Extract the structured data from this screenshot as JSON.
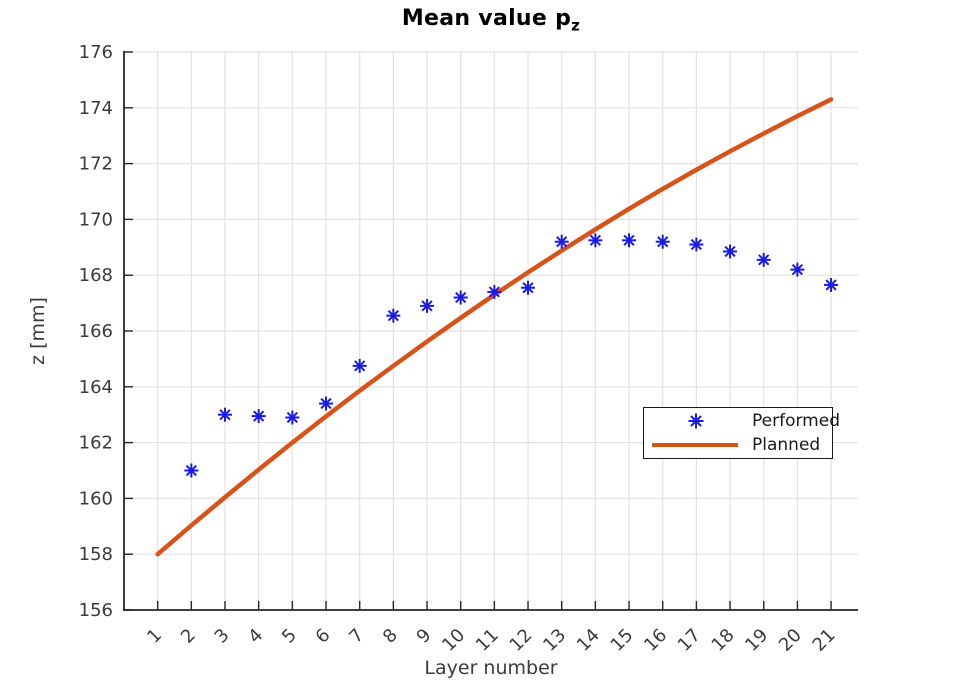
{
  "colors": {
    "performed": "#1A1AE8",
    "planned": "#D95319",
    "grid": "#E2E2E2",
    "axis": "#262626",
    "tick_text": "#3B3B3B"
  },
  "chart_data": {
    "type": "line+scatter",
    "title_main": "Mean value p",
    "title_sub": "z",
    "xlabel": "Layer number",
    "ylabel": "z [mm]",
    "xlim": [
      0,
      21.8
    ],
    "ylim": [
      156,
      176
    ],
    "grid": true,
    "x_ticks": [
      1,
      2,
      3,
      4,
      5,
      6,
      7,
      8,
      9,
      10,
      11,
      12,
      13,
      14,
      15,
      16,
      17,
      18,
      19,
      20,
      21
    ],
    "y_ticks": [
      156,
      158,
      160,
      162,
      164,
      166,
      168,
      170,
      172,
      174,
      176
    ],
    "legend": [
      {
        "label": "Performed",
        "marker": "asterisk",
        "color": "#1A1AE8"
      },
      {
        "label": "Planned",
        "marker": "line",
        "color": "#D95319"
      }
    ],
    "legend_position": "middle-right",
    "series": [
      {
        "name": "Performed",
        "type": "scatter",
        "marker": "asterisk",
        "color": "#1A1AE8",
        "x": [
          2,
          3,
          4,
          5,
          6,
          7,
          8,
          9,
          10,
          11,
          12,
          13,
          14,
          15,
          16,
          17,
          18,
          19,
          20,
          21
        ],
        "y": [
          161.0,
          163.0,
          162.95,
          162.9,
          163.4,
          164.75,
          166.55,
          166.9,
          167.2,
          167.4,
          167.55,
          169.2,
          169.25,
          169.25,
          169.2,
          169.1,
          168.85,
          168.55,
          168.2,
          167.65
        ]
      },
      {
        "name": "Planned",
        "type": "line",
        "color": "#D95319",
        "x": [
          1,
          2,
          3,
          4,
          5,
          6,
          7,
          8,
          9,
          10,
          11,
          12,
          13,
          14,
          15,
          16,
          17,
          18,
          19,
          20,
          21
        ],
        "y": [
          158.0,
          159.03,
          160.04,
          161.03,
          162.0,
          162.94,
          163.86,
          164.75,
          165.62,
          166.47,
          167.3,
          168.1,
          168.88,
          169.64,
          170.38,
          171.09,
          171.78,
          172.44,
          173.08,
          173.7,
          174.3
        ]
      }
    ]
  }
}
